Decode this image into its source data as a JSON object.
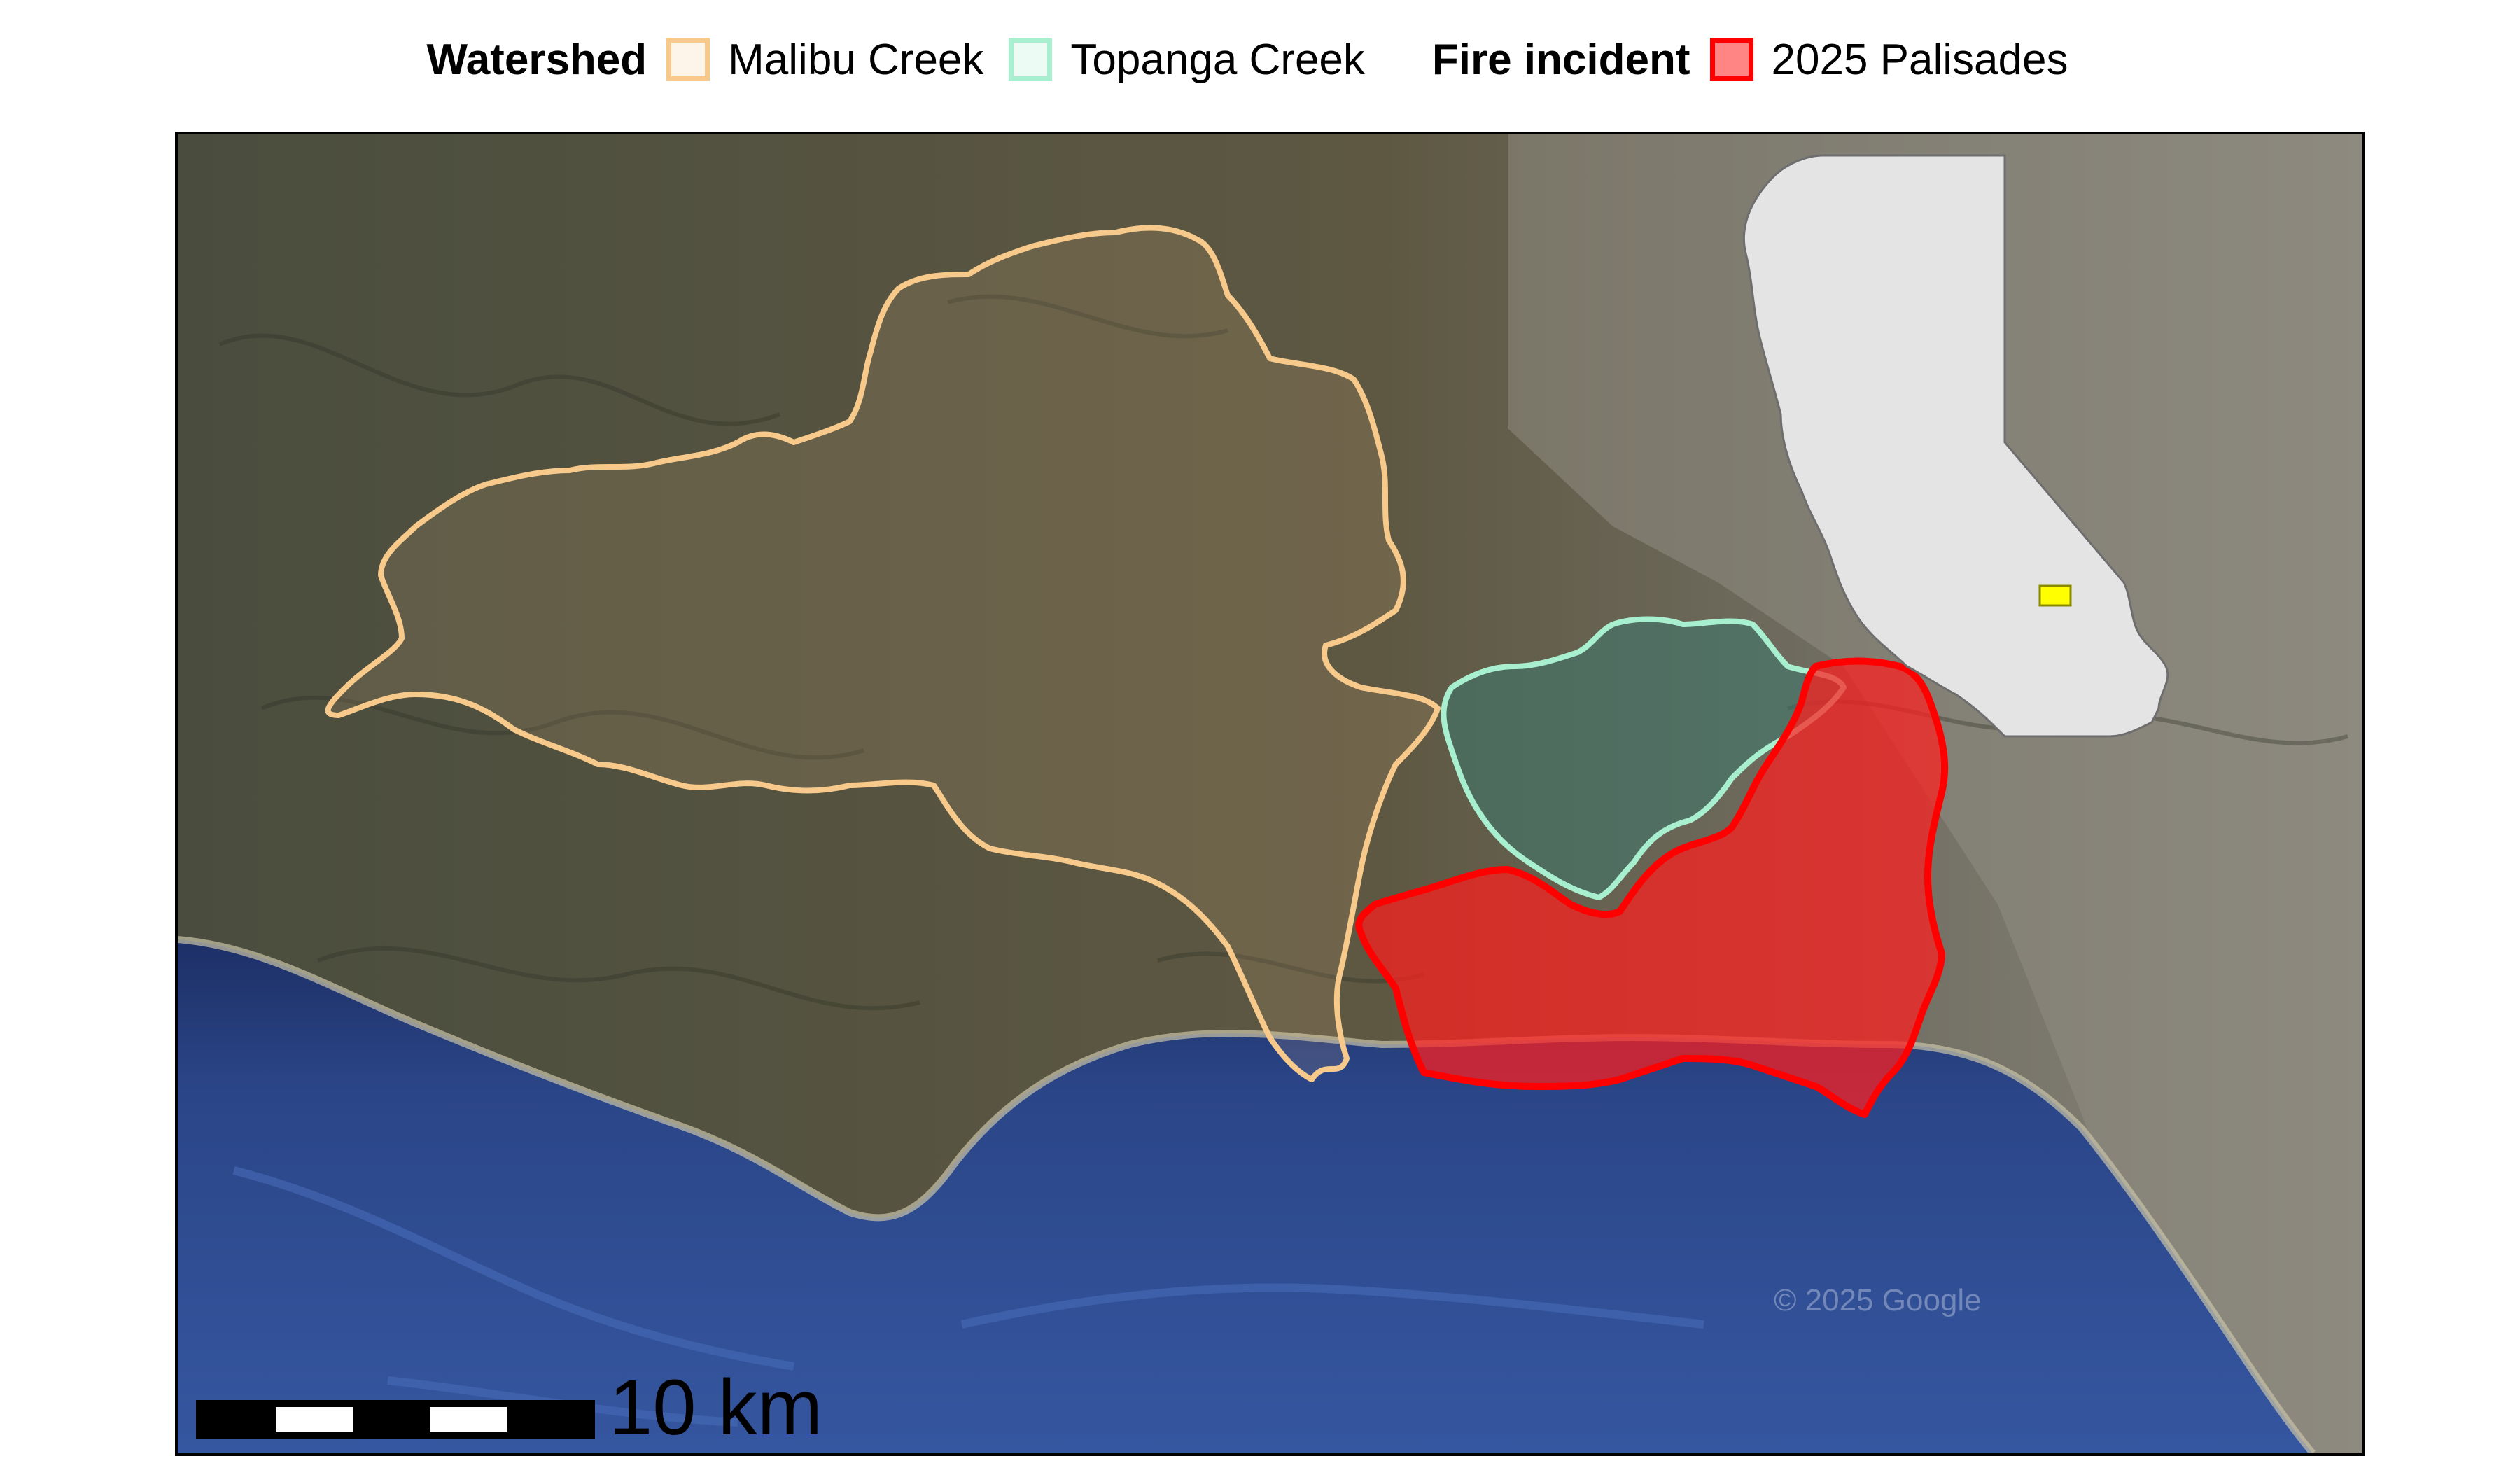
{
  "legend": {
    "watershed_title": "Watershed",
    "watershed_items": [
      {
        "label": "Malibu Creek",
        "color": "#f7c98b"
      },
      {
        "label": "Topanga Creek",
        "color": "#a8efcf"
      }
    ],
    "fire_title": "Fire incident",
    "fire_items": [
      {
        "label": "2025 Palisades",
        "color": "#ff0000"
      }
    ]
  },
  "map": {
    "basemap": "satellite",
    "land_color": "#5b5640",
    "ocean_color": "#2a4587",
    "inset": {
      "region": "California",
      "fill": "#e4e4e4",
      "highlight_color": "#ffff00"
    }
  },
  "scale_bar": {
    "label": "10 km"
  },
  "attribution": "© 2025 Google"
}
